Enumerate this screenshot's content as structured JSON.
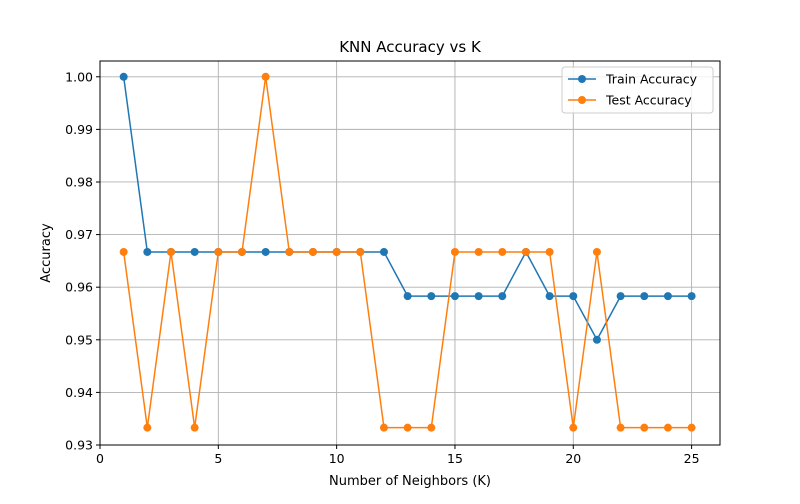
{
  "chart_data": {
    "type": "line",
    "title": "KNN Accuracy vs K",
    "xlabel": "Number of Neighbors (K)",
    "ylabel": "Accuracy",
    "xlim": [
      0,
      26.2
    ],
    "ylim": [
      0.93,
      1.003
    ],
    "xticks": [
      0,
      5,
      10,
      15,
      20,
      25
    ],
    "yticks": [
      0.93,
      0.94,
      0.95,
      0.96,
      0.97,
      0.98,
      0.99,
      1.0
    ],
    "ytick_labels": [
      "0.93",
      "0.94",
      "0.95",
      "0.96",
      "0.97",
      "0.98",
      "0.99",
      "1.00"
    ],
    "grid": true,
    "legend_position": "top-right",
    "x": [
      1,
      2,
      3,
      4,
      5,
      6,
      7,
      8,
      9,
      10,
      11,
      12,
      13,
      14,
      15,
      16,
      17,
      18,
      19,
      20,
      21,
      22,
      23,
      24,
      25
    ],
    "series": [
      {
        "name": "Train Accuracy",
        "color": "#1f77b4",
        "marker": "circle",
        "values": [
          1.0,
          0.9667,
          0.9667,
          0.9667,
          0.9667,
          0.9667,
          0.9667,
          0.9667,
          0.9667,
          0.9667,
          0.9667,
          0.9667,
          0.9583,
          0.9583,
          0.9583,
          0.9583,
          0.9583,
          0.9667,
          0.9583,
          0.9583,
          0.95,
          0.9583,
          0.9583,
          0.9583,
          0.9583
        ]
      },
      {
        "name": "Test Accuracy",
        "color": "#ff7f0e",
        "marker": "circle",
        "values": [
          0.9667,
          0.9333,
          0.9667,
          0.9333,
          0.9667,
          0.9667,
          1.0,
          0.9667,
          0.9667,
          0.9667,
          0.9667,
          0.9333,
          0.9333,
          0.9333,
          0.9667,
          0.9667,
          0.9667,
          0.9667,
          0.9667,
          0.9333,
          0.9667,
          0.9333,
          0.9333,
          0.9333,
          0.9333
        ]
      }
    ]
  }
}
